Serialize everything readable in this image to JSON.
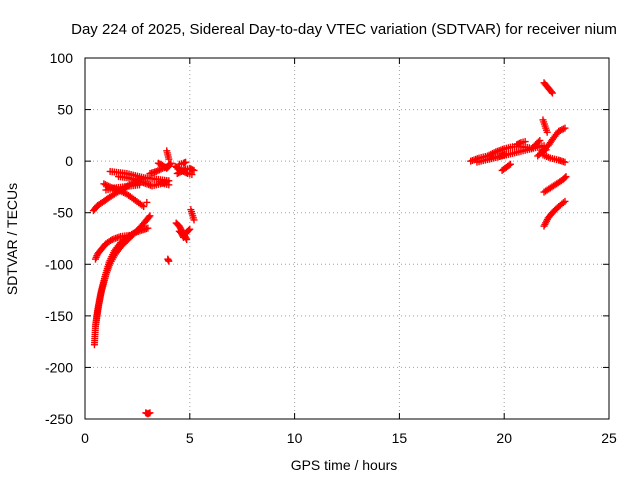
{
  "chart_data": {
    "type": "scatter",
    "title": "Day 224 of 2025, Sidereal Day-to-day VTEC variation (SDTVAR) for receiver nium",
    "xlabel": "GPS time / hours",
    "ylabel": "SDTVAR / TECUs",
    "xlim": [
      0,
      25
    ],
    "ylim": [
      -250,
      100
    ],
    "xticks": [
      "0",
      "5",
      "10",
      "15",
      "20",
      "25"
    ],
    "yticks": [
      "-250",
      "-200",
      "-150",
      "-100",
      "-50",
      "0",
      "50",
      "100"
    ],
    "grid": true,
    "marker": "+",
    "marker_color": "#ff0000",
    "segments": [
      {
        "points": [
          [
            0.45,
            -178
          ],
          [
            0.5,
            -160
          ],
          [
            0.6,
            -145
          ],
          [
            0.75,
            -128
          ],
          [
            0.95,
            -112
          ],
          [
            1.15,
            -98
          ],
          [
            1.4,
            -87
          ],
          [
            1.7,
            -79
          ],
          [
            2.0,
            -74
          ],
          [
            2.3,
            -70
          ],
          [
            2.7,
            -67
          ],
          [
            3.0,
            -65
          ]
        ]
      },
      {
        "points": [
          [
            0.5,
            -160
          ],
          [
            0.65,
            -140
          ],
          [
            0.8,
            -125
          ],
          [
            1.0,
            -110
          ],
          [
            1.2,
            -99
          ],
          [
            1.45,
            -90
          ],
          [
            1.7,
            -83
          ],
          [
            2.0,
            -77
          ],
          [
            2.3,
            -71
          ],
          [
            2.6,
            -65
          ],
          [
            2.9,
            -58
          ],
          [
            3.1,
            -53
          ]
        ]
      },
      {
        "points": [
          [
            0.5,
            -95
          ],
          [
            0.6,
            -90
          ],
          [
            0.8,
            -85
          ],
          [
            1.0,
            -80
          ],
          [
            1.3,
            -76
          ],
          [
            1.7,
            -73
          ],
          [
            2.1,
            -72
          ]
        ]
      },
      {
        "points": [
          [
            0.4,
            -48
          ],
          [
            0.6,
            -43
          ],
          [
            0.9,
            -39
          ],
          [
            1.1,
            -36
          ],
          [
            1.4,
            -32
          ],
          [
            1.8,
            -27
          ],
          [
            2.2,
            -22
          ],
          [
            2.6,
            -18
          ],
          [
            3.0,
            -16
          ]
        ]
      },
      {
        "points": [
          [
            1.0,
            -28
          ],
          [
            1.4,
            -26
          ],
          [
            1.8,
            -25
          ],
          [
            2.2,
            -24
          ],
          [
            2.6,
            -23
          ]
        ]
      },
      {
        "points": [
          [
            0.9,
            -22
          ],
          [
            1.2,
            -25
          ],
          [
            1.6,
            -28
          ],
          [
            2.0,
            -32
          ],
          [
            2.4,
            -38
          ],
          [
            2.8,
            -44
          ]
        ]
      },
      {
        "points": [
          [
            1.2,
            -10
          ],
          [
            1.6,
            -11
          ],
          [
            2.0,
            -12
          ],
          [
            2.4,
            -14
          ],
          [
            2.8,
            -16
          ],
          [
            3.2,
            -17
          ],
          [
            3.6,
            -18
          ],
          [
            4.0,
            -19
          ]
        ]
      },
      {
        "points": [
          [
            1.6,
            -15
          ],
          [
            2.0,
            -16
          ],
          [
            2.4,
            -18
          ],
          [
            2.8,
            -21
          ],
          [
            3.2,
            -24
          ],
          [
            3.6,
            -22
          ],
          [
            3.9,
            -20
          ]
        ]
      },
      {
        "points": [
          [
            3.1,
            -12
          ],
          [
            3.4,
            -10
          ],
          [
            3.7,
            -7
          ],
          [
            3.95,
            -5
          ],
          [
            4.1,
            -2
          ]
        ]
      },
      {
        "points": [
          [
            3.5,
            -2
          ],
          [
            3.7,
            -4
          ],
          [
            3.9,
            -7
          ],
          [
            4.0,
            -5
          ]
        ]
      },
      {
        "points": [
          [
            3.6,
            -20
          ],
          [
            3.8,
            -22
          ],
          [
            4.0,
            -23
          ]
        ]
      },
      {
        "points": [
          [
            3.9,
            10
          ],
          [
            3.95,
            6
          ],
          [
            4.0,
            2
          ]
        ]
      },
      {
        "points": [
          [
            4.3,
            -5
          ],
          [
            4.5,
            -8
          ],
          [
            4.7,
            -10
          ],
          [
            4.9,
            -12
          ],
          [
            5.1,
            -13
          ]
        ]
      },
      {
        "points": [
          [
            4.4,
            -12
          ],
          [
            4.6,
            -10
          ],
          [
            4.8,
            -8
          ],
          [
            5.0,
            -7
          ],
          [
            5.2,
            -9
          ]
        ]
      },
      {
        "points": [
          [
            4.5,
            -3
          ],
          [
            4.7,
            -2
          ],
          [
            4.8,
            -1
          ]
        ]
      },
      {
        "points": [
          [
            4.35,
            -60
          ],
          [
            4.5,
            -63
          ],
          [
            4.6,
            -67
          ],
          [
            4.75,
            -72
          ],
          [
            4.85,
            -76
          ]
        ]
      },
      {
        "points": [
          [
            4.5,
            -68
          ],
          [
            4.6,
            -70
          ],
          [
            4.7,
            -74
          ]
        ]
      },
      {
        "points": [
          [
            4.8,
            -70
          ],
          [
            4.9,
            -68
          ],
          [
            5.0,
            -66
          ]
        ]
      },
      {
        "points": [
          [
            5.05,
            -47
          ],
          [
            5.2,
            -57
          ]
        ]
      },
      {
        "points": [
          [
            3.95,
            -95
          ],
          [
            4.0,
            -97
          ]
        ]
      },
      {
        "points": [
          [
            2.9,
            -244
          ],
          [
            3.0,
            -245
          ],
          [
            3.1,
            -244
          ]
        ]
      },
      {
        "points": [
          [
            2.95,
            -40
          ]
        ]
      },
      {
        "points": [
          [
            18.4,
            0
          ],
          [
            18.8,
            3
          ],
          [
            19.2,
            5
          ],
          [
            19.6,
            9
          ],
          [
            20.0,
            12
          ],
          [
            20.4,
            14
          ],
          [
            20.8,
            14
          ],
          [
            21.2,
            13
          ]
        ]
      },
      {
        "points": [
          [
            18.7,
            -1
          ],
          [
            19.1,
            1
          ],
          [
            19.5,
            3
          ],
          [
            19.9,
            5
          ],
          [
            20.3,
            7
          ],
          [
            20.7,
            9
          ],
          [
            21.1,
            11
          ],
          [
            21.5,
            13
          ],
          [
            21.9,
            15
          ]
        ]
      },
      {
        "points": [
          [
            19.3,
            2
          ],
          [
            19.7,
            4
          ],
          [
            20.1,
            7
          ]
        ]
      },
      {
        "points": [
          [
            19.9,
            -9
          ],
          [
            20.1,
            -6
          ],
          [
            20.3,
            -3
          ]
        ]
      },
      {
        "points": [
          [
            20.6,
            16
          ],
          [
            20.8,
            18
          ],
          [
            21.0,
            19
          ]
        ]
      },
      {
        "points": [
          [
            21.3,
            12
          ],
          [
            21.5,
            16
          ],
          [
            21.7,
            20
          ]
        ]
      },
      {
        "points": [
          [
            21.6,
            5
          ],
          [
            21.8,
            9
          ],
          [
            22.0,
            11
          ]
        ]
      },
      {
        "points": [
          [
            21.8,
            10
          ],
          [
            22.1,
            15
          ],
          [
            22.3,
            21
          ],
          [
            22.6,
            29
          ],
          [
            22.9,
            32
          ]
        ]
      },
      {
        "points": [
          [
            21.85,
            40
          ],
          [
            21.95,
            34
          ],
          [
            22.05,
            28
          ]
        ]
      },
      {
        "points": [
          [
            21.9,
            76
          ],
          [
            22.1,
            71
          ],
          [
            22.3,
            66
          ]
        ]
      },
      {
        "points": [
          [
            21.85,
            6
          ],
          [
            22.2,
            3
          ],
          [
            22.6,
            1
          ],
          [
            22.9,
            -1
          ]
        ]
      },
      {
        "points": [
          [
            21.9,
            -30
          ],
          [
            22.2,
            -26
          ],
          [
            22.5,
            -22
          ],
          [
            22.8,
            -18
          ],
          [
            22.95,
            -15
          ]
        ]
      },
      {
        "points": [
          [
            21.9,
            -63
          ],
          [
            22.1,
            -55
          ],
          [
            22.3,
            -50
          ],
          [
            22.6,
            -44
          ],
          [
            22.9,
            -39
          ]
        ]
      }
    ]
  }
}
